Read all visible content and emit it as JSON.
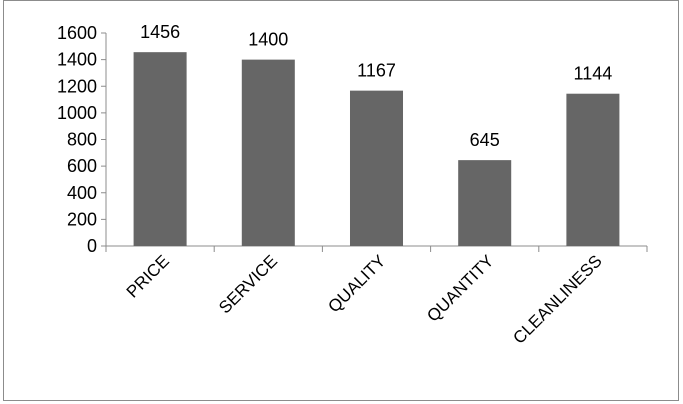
{
  "chart_data": {
    "type": "bar",
    "categories": [
      "PRICE",
      "SERVICE",
      "QUALITY",
      "QUANTITY",
      "CLEANLINESS"
    ],
    "values": [
      1456,
      1400,
      1167,
      645,
      1144
    ],
    "data_labels": [
      "1456",
      "1400",
      "1167",
      "645",
      "1144"
    ],
    "ylim": [
      0,
      1600
    ],
    "yticks": [
      0,
      200,
      400,
      600,
      800,
      1000,
      1200,
      1400,
      1600
    ],
    "grid": false,
    "legend": "none",
    "bar_color": "#666666",
    "axis_color": "#8c8c8c"
  }
}
